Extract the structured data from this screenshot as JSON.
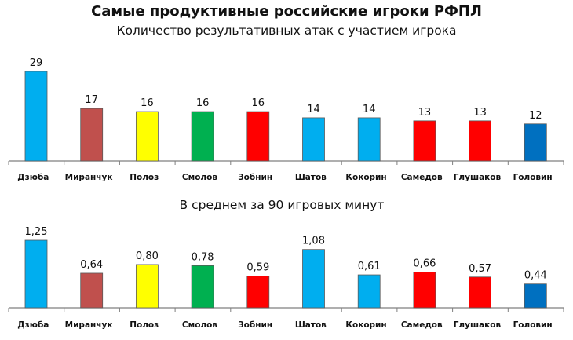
{
  "title": "Самые продуктивные российские игроки РФПЛ",
  "chart_data": [
    {
      "type": "bar",
      "subtitle": "Количество результативных атак с участием игрока",
      "categories": [
        "Дзюба",
        "Миранчук",
        "Полоз",
        "Смолов",
        "Зобнин",
        "Шатов",
        "Кокорин",
        "Самедов",
        "Глушаков",
        "Головин"
      ],
      "values": [
        29,
        17,
        16,
        16,
        16,
        14,
        14,
        13,
        13,
        12
      ],
      "value_labels": [
        "29",
        "17",
        "16",
        "16",
        "16",
        "14",
        "14",
        "13",
        "13",
        "12"
      ],
      "colors": [
        "#00AEEF",
        "#C0504D",
        "#FFFF00",
        "#00B050",
        "#FF0000",
        "#00AEEF",
        "#00AEEF",
        "#FF0000",
        "#FF0000",
        "#0070C0"
      ],
      "ylim": [
        0,
        30
      ],
      "grid": false
    },
    {
      "type": "bar",
      "subtitle": "В среднем за 90 игровых минут",
      "categories": [
        "Дзюба",
        "Миранчук",
        "Полоз",
        "Смолов",
        "Зобнин",
        "Шатов",
        "Кокорин",
        "Самедов",
        "Глушаков",
        "Головин"
      ],
      "values": [
        1.25,
        0.64,
        0.8,
        0.78,
        0.59,
        1.08,
        0.61,
        0.66,
        0.57,
        0.44
      ],
      "value_labels": [
        "1,25",
        "0,64",
        "0,80",
        "0,78",
        "0,59",
        "1,08",
        "0,61",
        "0,66",
        "0,57",
        "0,44"
      ],
      "colors": [
        "#00AEEF",
        "#C0504D",
        "#FFFF00",
        "#00B050",
        "#FF0000",
        "#00AEEF",
        "#00AEEF",
        "#FF0000",
        "#FF0000",
        "#0070C0"
      ],
      "ylim": [
        0,
        1.25
      ],
      "grid": false
    }
  ]
}
